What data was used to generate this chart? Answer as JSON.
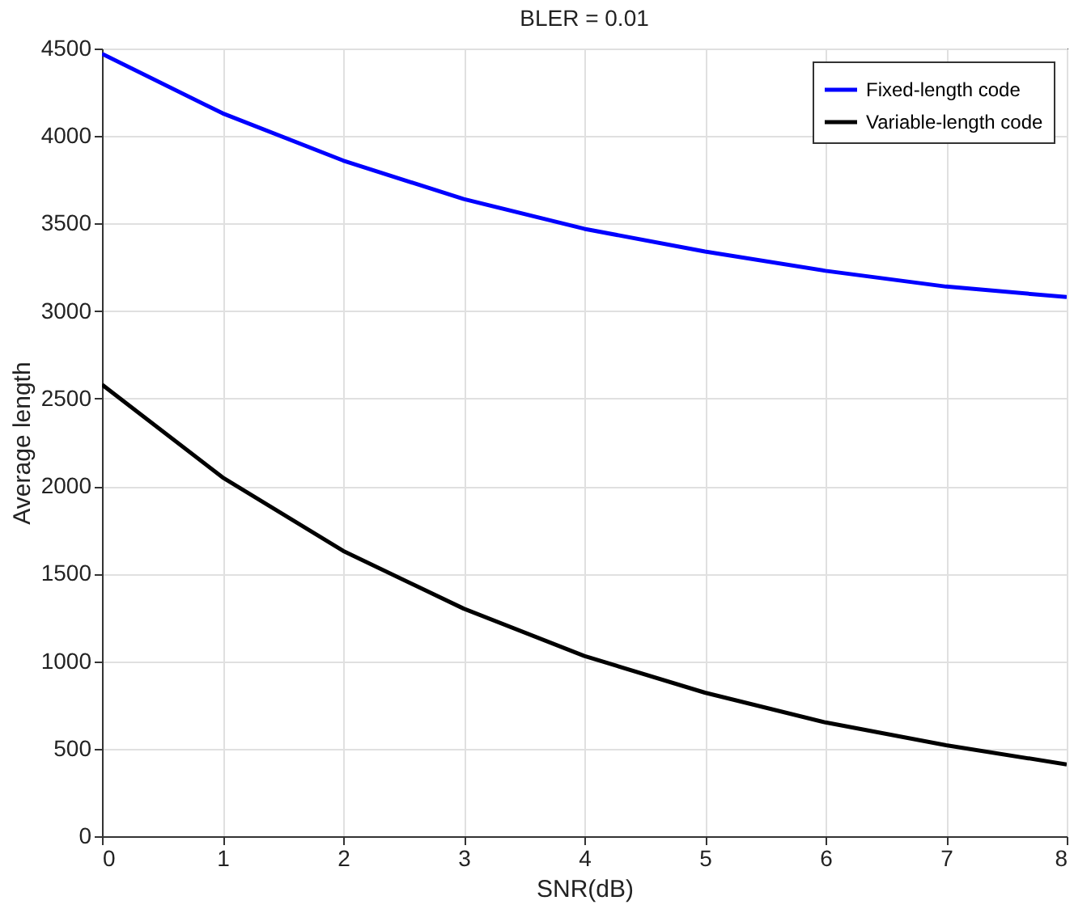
{
  "chart_data": {
    "type": "line",
    "title": "BLER = 0.01",
    "xlabel": "SNR(dB)",
    "ylabel": "Average length",
    "x": [
      0,
      1,
      2,
      3,
      4,
      5,
      6,
      7,
      8
    ],
    "series": [
      {
        "name": "Fixed-length code",
        "color": "#0000ff",
        "values": [
          4470,
          4130,
          3860,
          3640,
          3470,
          3340,
          3230,
          3140,
          3080
        ]
      },
      {
        "name": "Variable-length code",
        "color": "#000000",
        "values": [
          2580,
          2050,
          1630,
          1300,
          1030,
          820,
          650,
          520,
          410
        ]
      }
    ],
    "xlim": [
      0,
      8
    ],
    "xticks": [
      0,
      1,
      2,
      3,
      4,
      5,
      6,
      7,
      8
    ],
    "ylim": [
      0,
      4500
    ],
    "yticks": [
      0,
      500,
      1000,
      1500,
      2000,
      2500,
      3000,
      3500,
      4000,
      4500
    ],
    "grid": true,
    "legend": "top right",
    "marker": "none",
    "line_style": "solid"
  }
}
